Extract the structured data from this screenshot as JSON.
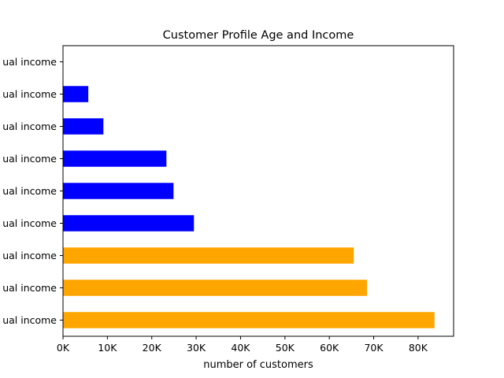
{
  "chart_data": {
    "type": "bar",
    "orientation": "horizontal",
    "title": "Customer Profile Age and Income",
    "xlabel": "number of customers",
    "ylabel": "",
    "xlim": [
      0,
      88000
    ],
    "x_ticks": [
      0,
      10000,
      20000,
      30000,
      40000,
      50000,
      60000,
      70000,
      80000
    ],
    "x_tick_labels": [
      "0K",
      "10K",
      "20K",
      "30K",
      "40K",
      "50K",
      "60K",
      "70K",
      "80K"
    ],
    "categories": [
      "ual income",
      "ual income",
      "ual income",
      "ual income",
      "ual income",
      "ual income",
      "ual income",
      "ual income",
      "ual income"
    ],
    "values": [
      0,
      5700,
      9100,
      23300,
      24900,
      29500,
      65500,
      68500,
      83700
    ],
    "colors": [
      "#0000ff",
      "#0000ff",
      "#0000ff",
      "#0000ff",
      "#0000ff",
      "#0000ff",
      "#ffa500",
      "#ffa500",
      "#ffa500"
    ],
    "grid": false
  }
}
